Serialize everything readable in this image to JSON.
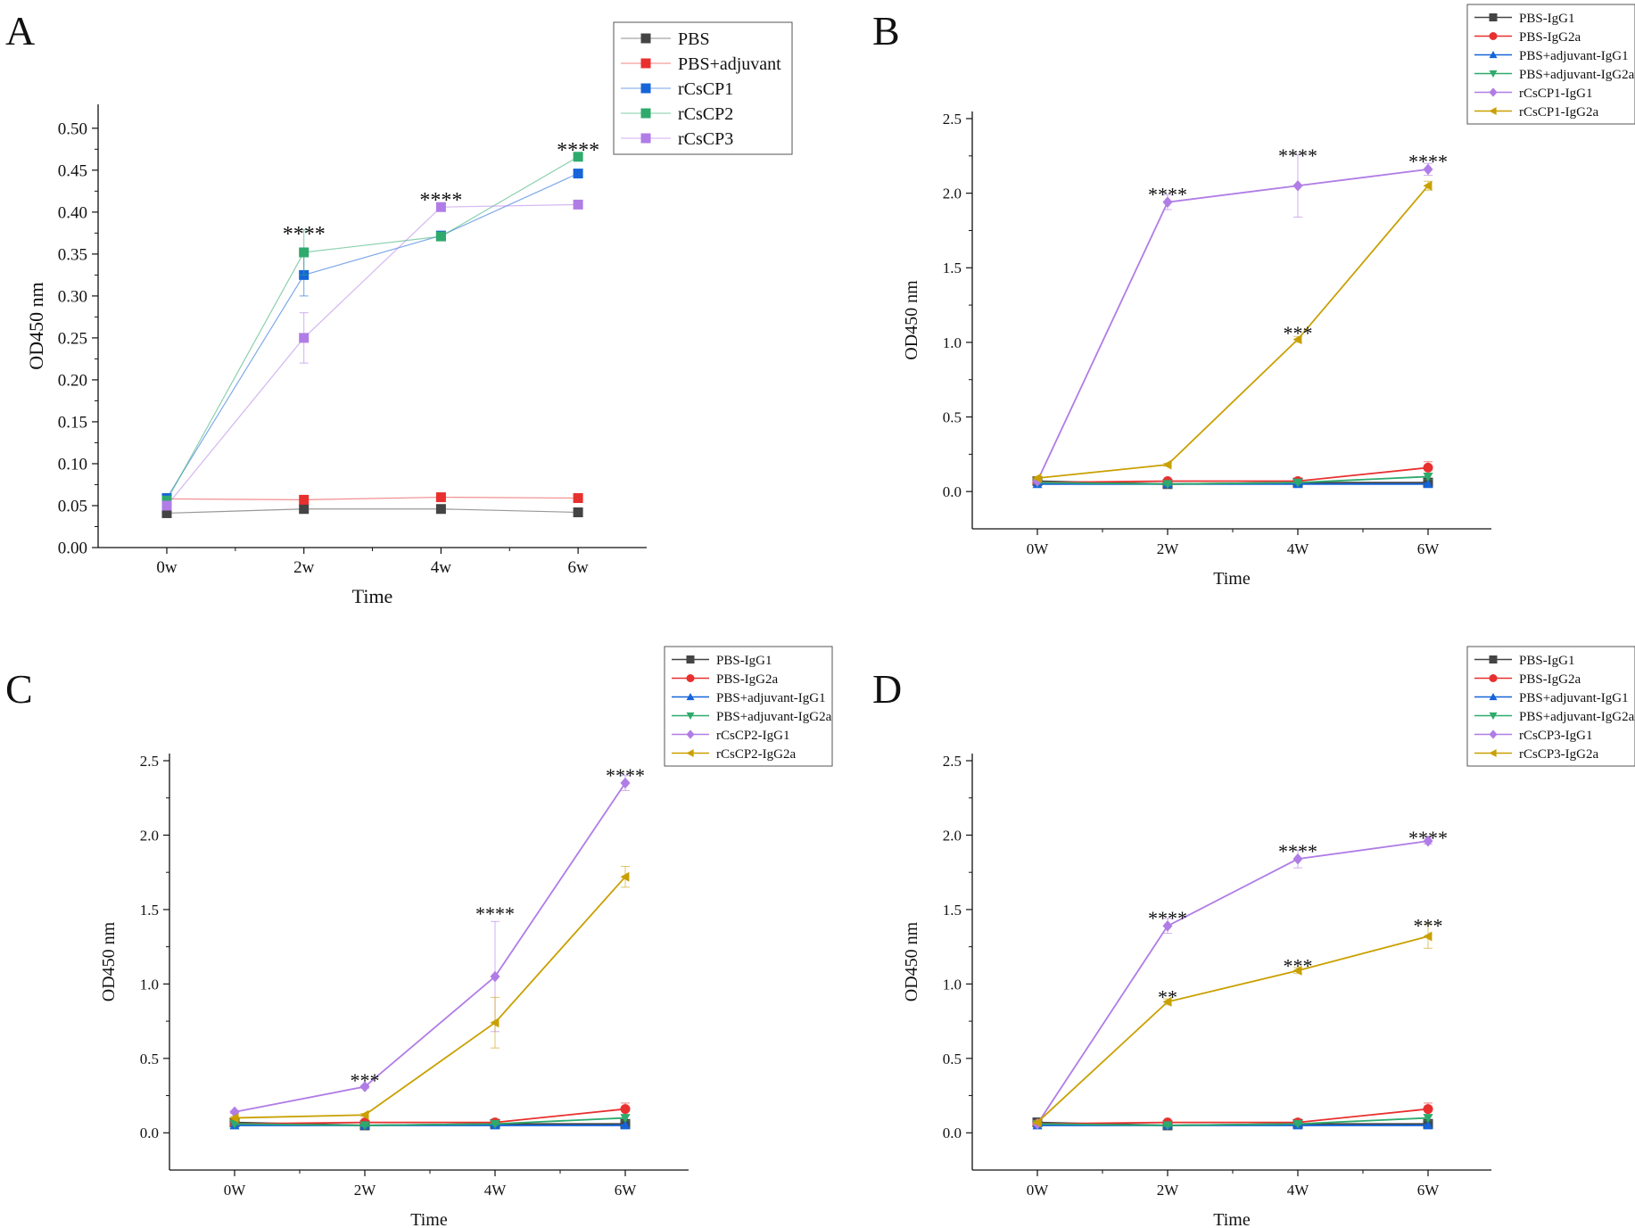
{
  "figure": {
    "panel_letters": [
      "A",
      "B",
      "C",
      "D"
    ]
  },
  "chart_data": [
    {
      "panel": "A",
      "type": "line",
      "title": "",
      "xlabel": "Time",
      "ylabel": "OD450 nm",
      "categories": [
        "0w",
        "2w",
        "4w",
        "6w"
      ],
      "ylim": [
        0,
        0.52
      ],
      "yticks": [
        "0.00",
        "0.05",
        "0.10",
        "0.15",
        "0.20",
        "0.25",
        "0.30",
        "0.35",
        "0.40",
        "0.45",
        "0.50"
      ],
      "legend_position": "top-right",
      "series": [
        {
          "name": "PBS",
          "color": "#444444",
          "marker": "square",
          "values": [
            0.041,
            0.046,
            0.046,
            0.042
          ],
          "errors": [
            0.003,
            0.003,
            0.003,
            0.003
          ]
        },
        {
          "name": "PBS+adjuvant",
          "color": "#e8302f",
          "marker": "square",
          "values": [
            0.058,
            0.057,
            0.06,
            0.059
          ],
          "errors": [
            0.003,
            0.003,
            0.004,
            0.004
          ]
        },
        {
          "name": "rCsCP1",
          "color": "#1565d8",
          "marker": "square",
          "values": [
            0.059,
            0.325,
            0.372,
            0.446
          ],
          "errors": [
            0.005,
            0.025,
            0.004,
            0.004
          ]
        },
        {
          "name": "rCsCP2",
          "color": "#2eaa6c",
          "marker": "square",
          "values": [
            0.056,
            0.352,
            0.371,
            0.466
          ],
          "errors": [
            0.004,
            0.027,
            0.004,
            0.004
          ]
        },
        {
          "name": "rCsCP3",
          "color": "#b07ce6",
          "marker": "square",
          "values": [
            0.05,
            0.25,
            0.406,
            0.409
          ],
          "errors": [
            0.004,
            0.03,
            0.004,
            0.004
          ]
        }
      ],
      "annotations": [
        {
          "category": "2w",
          "value": 0.38,
          "text": "****"
        },
        {
          "category": "4w",
          "value": 0.42,
          "text": "****"
        },
        {
          "category": "6w",
          "value": 0.48,
          "text": "****"
        }
      ]
    },
    {
      "panel": "B",
      "type": "line",
      "title": "",
      "xlabel": "Time",
      "ylabel": "OD450 nm",
      "categories": [
        "0W",
        "2W",
        "4W",
        "6W"
      ],
      "ylim": [
        -0.25,
        2.5
      ],
      "yticks": [
        "0.0",
        "0.5",
        "1.0",
        "1.5",
        "2.0",
        "2.5"
      ],
      "legend_position": "top-right",
      "series": [
        {
          "name": "PBS-IgG1",
          "color": "#444444",
          "marker": "square",
          "values": [
            0.07,
            0.05,
            0.06,
            0.06
          ],
          "errors": [
            0.01,
            0.01,
            0.01,
            0.01
          ]
        },
        {
          "name": "PBS-IgG2a",
          "color": "#e8302f",
          "marker": "circle",
          "values": [
            0.06,
            0.07,
            0.07,
            0.16
          ],
          "errors": [
            0.01,
            0.01,
            0.01,
            0.04
          ]
        },
        {
          "name": "PBS+adjuvant-IgG1",
          "color": "#1565d8",
          "marker": "triangle-up",
          "values": [
            0.05,
            0.05,
            0.05,
            0.05
          ],
          "errors": [
            0.01,
            0.01,
            0.01,
            0.01
          ]
        },
        {
          "name": "PBS+adjuvant-IgG2a",
          "color": "#2eaa6c",
          "marker": "triangle-down",
          "values": [
            0.06,
            0.05,
            0.06,
            0.1
          ],
          "errors": [
            0.01,
            0.01,
            0.01,
            0.02
          ]
        },
        {
          "name": "rCsCP1-IgG1",
          "color": "#b07ce6",
          "marker": "diamond",
          "values": [
            0.07,
            1.94,
            2.05,
            2.16
          ],
          "errors": [
            0.01,
            0.05,
            0.21,
            0.04
          ]
        },
        {
          "name": "rCsCP1-IgG2a",
          "color": "#c9a000",
          "marker": "triangle-left",
          "values": [
            0.09,
            0.18,
            1.02,
            2.05
          ],
          "errors": [
            0.01,
            0.01,
            0.02,
            0.03
          ]
        }
      ],
      "annotations": [
        {
          "category": "2W",
          "value": 2.02,
          "text": "****"
        },
        {
          "category": "4W",
          "value": 2.28,
          "text": "****"
        },
        {
          "category": "6W",
          "value": 2.24,
          "text": "****"
        },
        {
          "category": "4W",
          "value": 1.09,
          "text": "***"
        }
      ]
    },
    {
      "panel": "C",
      "type": "line",
      "title": "",
      "xlabel": "Time",
      "ylabel": "OD450 nm",
      "categories": [
        "0W",
        "2W",
        "4W",
        "6W"
      ],
      "ylim": [
        -0.25,
        2.5
      ],
      "yticks": [
        "0.0",
        "0.5",
        "1.0",
        "1.5",
        "2.0",
        "2.5"
      ],
      "legend_position": "top-right",
      "series": [
        {
          "name": "PBS-IgG1",
          "color": "#444444",
          "marker": "square",
          "values": [
            0.07,
            0.05,
            0.06,
            0.06
          ],
          "errors": [
            0.01,
            0.01,
            0.01,
            0.01
          ]
        },
        {
          "name": "PBS-IgG2a",
          "color": "#e8302f",
          "marker": "circle",
          "values": [
            0.06,
            0.07,
            0.07,
            0.16
          ],
          "errors": [
            0.01,
            0.01,
            0.01,
            0.04
          ]
        },
        {
          "name": "PBS+adjuvant-IgG1",
          "color": "#1565d8",
          "marker": "triangle-up",
          "values": [
            0.05,
            0.05,
            0.05,
            0.05
          ],
          "errors": [
            0.01,
            0.01,
            0.01,
            0.01
          ]
        },
        {
          "name": "PBS+adjuvant-IgG2a",
          "color": "#2eaa6c",
          "marker": "triangle-down",
          "values": [
            0.06,
            0.05,
            0.06,
            0.1
          ],
          "errors": [
            0.01,
            0.01,
            0.01,
            0.02
          ]
        },
        {
          "name": "rCsCP2-IgG1",
          "color": "#b07ce6",
          "marker": "diamond",
          "values": [
            0.14,
            0.31,
            1.05,
            2.35
          ],
          "errors": [
            0.01,
            0.01,
            0.37,
            0.05
          ]
        },
        {
          "name": "rCsCP2-IgG2a",
          "color": "#c9a000",
          "marker": "triangle-left",
          "values": [
            0.1,
            0.12,
            0.74,
            1.72
          ],
          "errors": [
            0.01,
            0.01,
            0.17,
            0.07
          ]
        }
      ],
      "annotations": [
        {
          "category": "2W",
          "value": 0.38,
          "text": "***"
        },
        {
          "category": "4W",
          "value": 1.5,
          "text": "****"
        },
        {
          "category": "6W",
          "value": 2.43,
          "text": "****"
        }
      ]
    },
    {
      "panel": "D",
      "type": "line",
      "title": "",
      "xlabel": "Time",
      "ylabel": "OD450 nm",
      "categories": [
        "0W",
        "2W",
        "4W",
        "6W"
      ],
      "ylim": [
        -0.25,
        2.5
      ],
      "yticks": [
        "0.0",
        "0.5",
        "1.0",
        "1.5",
        "2.0",
        "2.5"
      ],
      "legend_position": "top-right",
      "series": [
        {
          "name": "PBS-IgG1",
          "color": "#444444",
          "marker": "square",
          "values": [
            0.07,
            0.05,
            0.06,
            0.06
          ],
          "errors": [
            0.01,
            0.01,
            0.01,
            0.01
          ]
        },
        {
          "name": "PBS-IgG2a",
          "color": "#e8302f",
          "marker": "circle",
          "values": [
            0.06,
            0.07,
            0.07,
            0.16
          ],
          "errors": [
            0.01,
            0.01,
            0.01,
            0.04
          ]
        },
        {
          "name": "PBS+adjuvant-IgG1",
          "color": "#1565d8",
          "marker": "triangle-up",
          "values": [
            0.05,
            0.05,
            0.05,
            0.05
          ],
          "errors": [
            0.01,
            0.01,
            0.01,
            0.01
          ]
        },
        {
          "name": "PBS+adjuvant-IgG2a",
          "color": "#2eaa6c",
          "marker": "triangle-down",
          "values": [
            0.06,
            0.05,
            0.06,
            0.1
          ],
          "errors": [
            0.01,
            0.01,
            0.01,
            0.02
          ]
        },
        {
          "name": "rCsCP3-IgG1",
          "color": "#b07ce6",
          "marker": "diamond",
          "values": [
            0.06,
            1.39,
            1.84,
            1.96
          ],
          "errors": [
            0.01,
            0.05,
            0.06,
            0.02
          ]
        },
        {
          "name": "rCsCP3-IgG2a",
          "color": "#c9a000",
          "marker": "triangle-left",
          "values": [
            0.07,
            0.88,
            1.09,
            1.32
          ],
          "errors": [
            0.01,
            0.02,
            0.02,
            0.08
          ]
        }
      ],
      "annotations": [
        {
          "category": "2W",
          "value": 1.47,
          "text": "****"
        },
        {
          "category": "4W",
          "value": 1.92,
          "text": "****"
        },
        {
          "category": "6W",
          "value": 2.01,
          "text": "****"
        },
        {
          "category": "2W",
          "value": 0.94,
          "text": "**"
        },
        {
          "category": "4W",
          "value": 1.15,
          "text": "***"
        },
        {
          "category": "6W",
          "value": 1.42,
          "text": "***"
        }
      ]
    }
  ]
}
